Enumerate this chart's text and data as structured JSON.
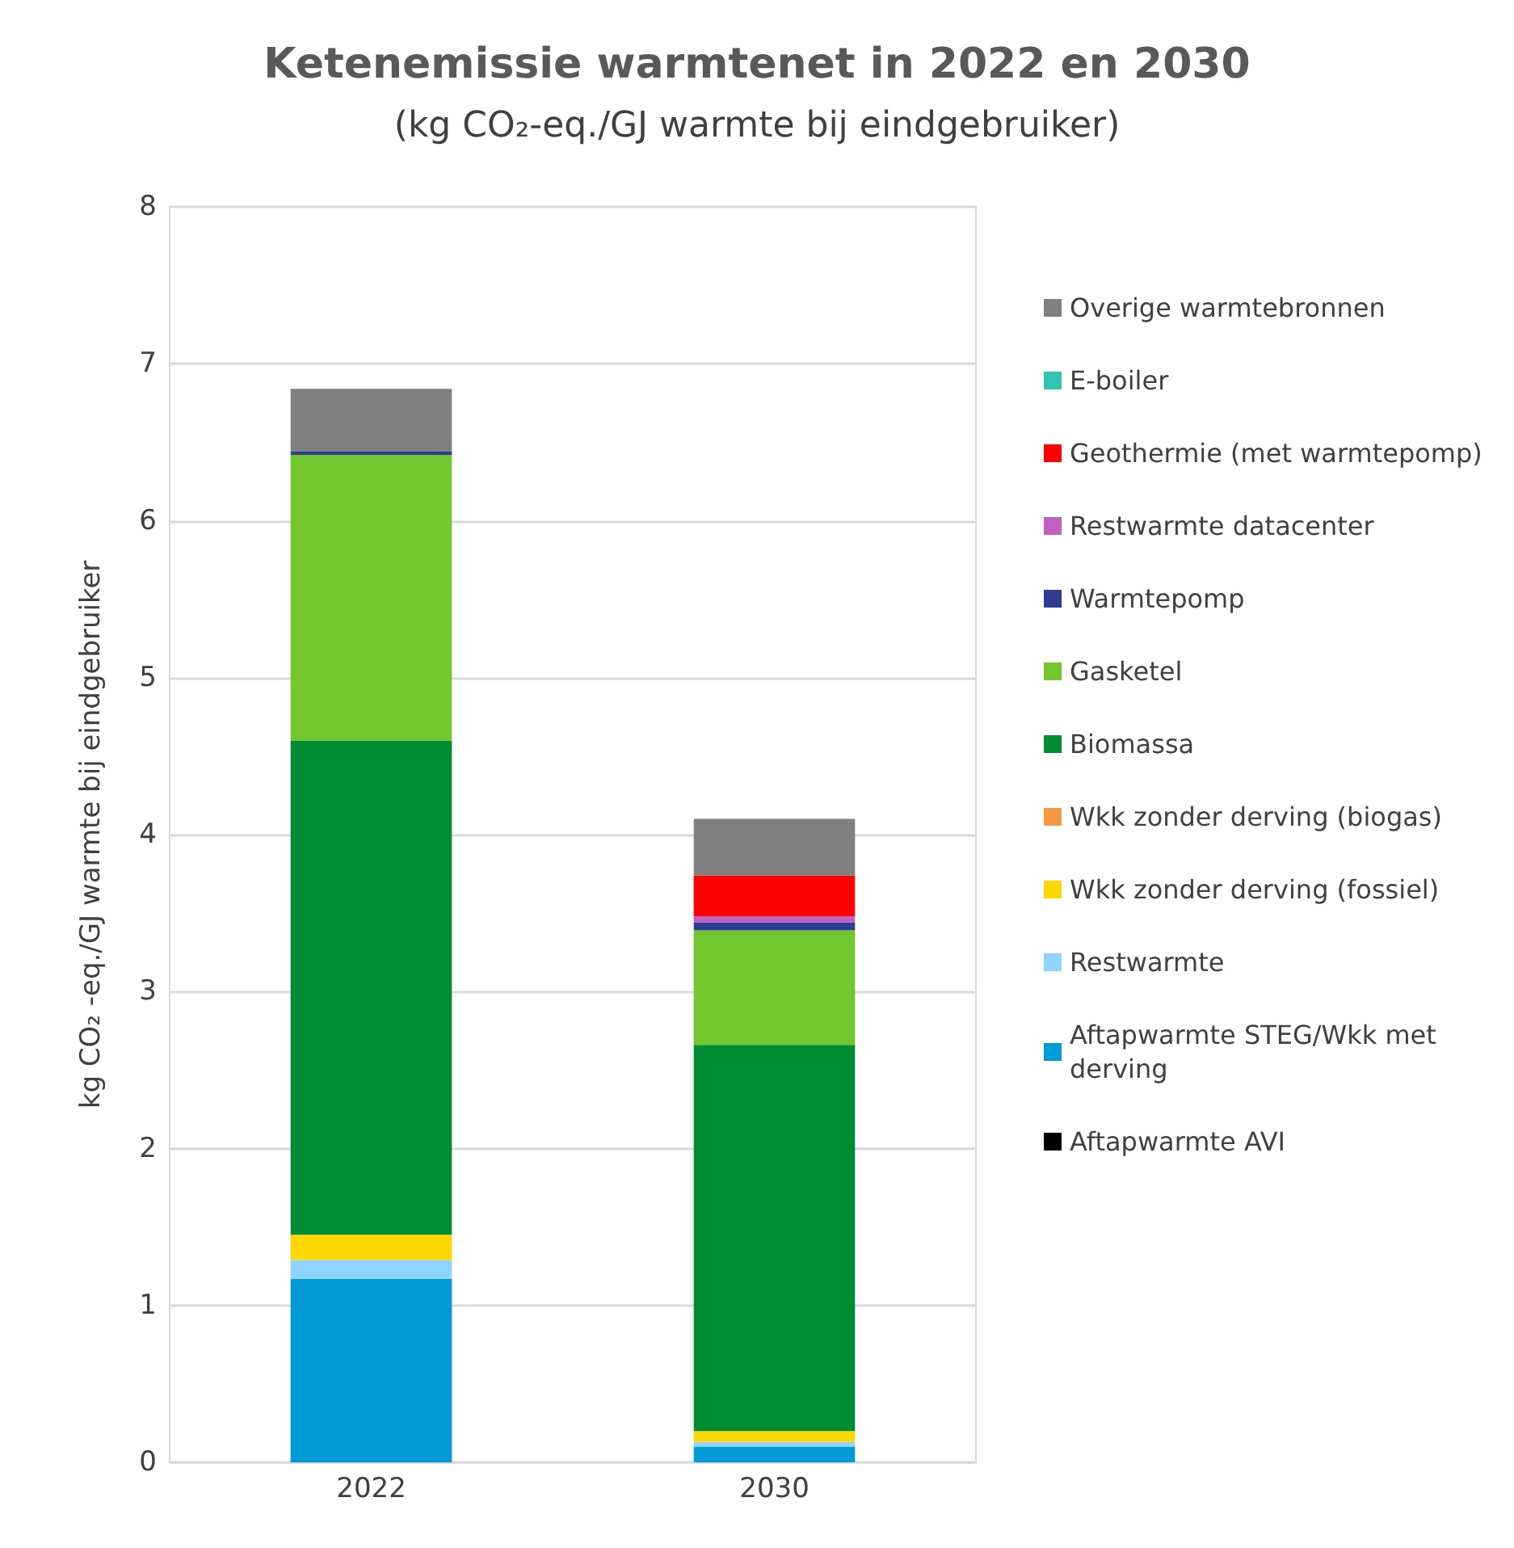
{
  "chart_data": {
    "type": "bar",
    "stacked": true,
    "title": "Ketenemissie warmtenet in 2022 en 2030",
    "subtitle": "(kg CO₂-eq./GJ warmte bij eindgebruiker)",
    "ylabel": "kg CO₂ -eq./GJ warmte bij eindgebruiker",
    "categories": [
      "2022",
      "2030"
    ],
    "ylim": [
      0,
      8
    ],
    "yticks": [
      0,
      1,
      2,
      3,
      4,
      5,
      6,
      7,
      8
    ],
    "grid": "y",
    "legend": "right",
    "series": [
      {
        "name": "Aftapwarmte AVI",
        "color": "#000000",
        "values": [
          0,
          0
        ]
      },
      {
        "name": "Aftapwarmte STEG/Wkk met derving",
        "color": "#009ad8",
        "values": [
          1.17,
          0.1
        ]
      },
      {
        "name": "Restwarmte",
        "color": "#8fd3ff",
        "values": [
          0.12,
          0.03
        ]
      },
      {
        "name": "Wkk zonder derving (fossiel)",
        "color": "#ffd700",
        "values": [
          0.16,
          0.07
        ]
      },
      {
        "name": "Wkk zonder derving (biogas)",
        "color": "#f79646",
        "values": [
          0,
          0
        ]
      },
      {
        "name": "Biomassa",
        "color": "#008c32",
        "values": [
          3.15,
          2.46
        ]
      },
      {
        "name": "Gasketel",
        "color": "#72c62e",
        "values": [
          1.82,
          0.73
        ]
      },
      {
        "name": "Warmtepomp",
        "color": "#2e3d8f",
        "values": [
          0.02,
          0.05
        ]
      },
      {
        "name": "Restwarmte datacenter",
        "color": "#c060c0",
        "values": [
          0,
          0.04
        ]
      },
      {
        "name": "Geothermie (met warmtepomp)",
        "color": "#ff0000",
        "values": [
          0,
          0.26
        ]
      },
      {
        "name": "E-boiler",
        "color": "#33c3b4",
        "values": [
          0,
          0
        ]
      },
      {
        "name": "Overige warmtebronnen",
        "color": "#808080",
        "values": [
          0.4,
          0.36
        ]
      }
    ]
  }
}
